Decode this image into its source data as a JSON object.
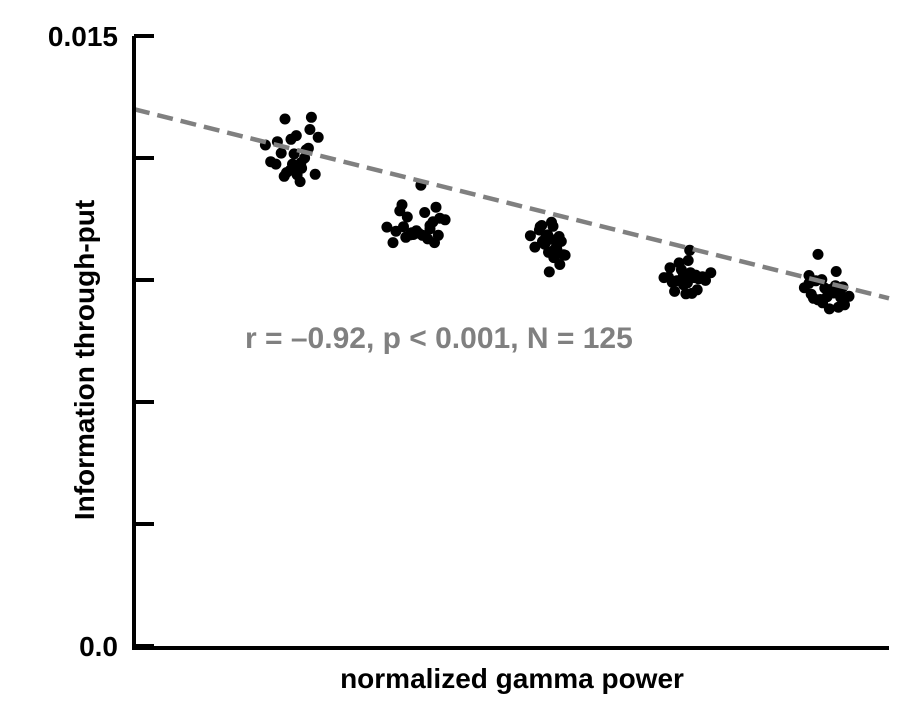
{
  "chart_data": {
    "type": "scatter",
    "title": "",
    "xlabel": "normalized gamma power",
    "ylabel": "Information through-put",
    "ylim": [
      0,
      0.015
    ],
    "xlim": [
      0,
      1
    ],
    "y_tick_values": [
      0,
      0.003,
      0.006,
      0.009,
      0.012,
      0.015
    ],
    "y_tick_labels": [
      "0.0",
      "",
      "",
      "",
      "",
      "0.015"
    ],
    "grid": false,
    "annotation": "r = –0.92, p < 0.001, N = 125",
    "colors": {
      "points": "#000000",
      "fit_line": "#808080",
      "annotation": "#808080",
      "axes": "#000000"
    },
    "fit_line": {
      "x": [
        0.0,
        1.0
      ],
      "y": [
        0.0132,
        0.00855
      ],
      "style": "dashed"
    },
    "points": {
      "x": [
        0.174,
        0.188,
        0.181,
        0.2,
        0.195,
        0.208,
        0.21,
        0.216,
        0.222,
        0.226,
        0.22,
        0.231,
        0.24,
        0.215,
        0.202,
        0.235,
        0.218,
        0.228,
        0.244,
        0.19,
        0.221,
        0.212,
        0.233,
        0.207,
        0.199,
        0.335,
        0.343,
        0.352,
        0.36,
        0.368,
        0.374,
        0.38,
        0.385,
        0.392,
        0.396,
        0.4,
        0.405,
        0.412,
        0.362,
        0.347,
        0.377,
        0.389,
        0.355,
        0.403,
        0.37,
        0.382,
        0.392,
        0.398,
        0.366,
        0.357,
        0.525,
        0.531,
        0.537,
        0.541,
        0.545,
        0.549,
        0.553,
        0.558,
        0.561,
        0.566,
        0.571,
        0.54,
        0.548,
        0.556,
        0.564,
        0.538,
        0.552,
        0.56,
        0.569,
        0.544,
        0.55,
        0.557,
        0.563,
        0.547,
        0.555,
        0.702,
        0.71,
        0.716,
        0.722,
        0.728,
        0.734,
        0.74,
        0.746,
        0.752,
        0.757,
        0.764,
        0.713,
        0.725,
        0.736,
        0.748,
        0.731,
        0.742,
        0.719,
        0.737,
        0.753,
        0.727,
        0.744,
        0.708,
        0.733,
        0.739,
        0.888,
        0.894,
        0.9,
        0.906,
        0.912,
        0.918,
        0.924,
        0.93,
        0.936,
        0.941,
        0.947,
        0.897,
        0.909,
        0.921,
        0.933,
        0.903,
        0.915,
        0.927,
        0.939,
        0.894,
        0.911,
        0.923,
        0.935,
        0.906,
        0.929
      ],
      "y": [
        0.01232,
        0.01185,
        0.01191,
        0.01296,
        0.01212,
        0.01246,
        0.01185,
        0.01159,
        0.01175,
        0.012,
        0.01142,
        0.01224,
        0.0116,
        0.01255,
        0.01164,
        0.013,
        0.01178,
        0.0122,
        0.01251,
        0.0124,
        0.01188,
        0.0121,
        0.0127,
        0.0117,
        0.01155,
        0.0103,
        0.00992,
        0.0107,
        0.01005,
        0.01016,
        0.01021,
        0.01133,
        0.01066,
        0.01034,
        0.01043,
        0.01079,
        0.01052,
        0.01048,
        0.01055,
        0.0102,
        0.01015,
        0.01001,
        0.01085,
        0.0101,
        0.01012,
        0.0101,
        0.01026,
        0.00992,
        0.01011,
        0.01031,
        0.01009,
        0.00981,
        0.01023,
        0.00995,
        0.01003,
        0.00968,
        0.01042,
        0.0096,
        0.00989,
        0.00995,
        0.00961,
        0.01034,
        0.01011,
        0.00955,
        0.00938,
        0.01031,
        0.01,
        0.00976,
        0.00962,
        0.00988,
        0.0092,
        0.00975,
        0.01007,
        0.00999,
        0.01032,
        0.00906,
        0.0093,
        0.00872,
        0.00942,
        0.00888,
        0.00948,
        0.0091,
        0.00876,
        0.00907,
        0.00899,
        0.00918,
        0.00894,
        0.00925,
        0.00973,
        0.00903,
        0.00866,
        0.00906,
        0.00898,
        0.00918,
        0.00908,
        0.00907,
        0.00912,
        0.00907,
        0.00893,
        0.00867,
        0.00881,
        0.00911,
        0.00855,
        0.00963,
        0.00844,
        0.00859,
        0.00875,
        0.00921,
        0.00857,
        0.00839,
        0.0086,
        0.00865,
        0.00852,
        0.00829,
        0.00833,
        0.00898,
        0.0088,
        0.00868,
        0.00883,
        0.00892,
        0.00901,
        0.00877,
        0.00871,
        0.00851,
        0.00886
      ]
    }
  }
}
